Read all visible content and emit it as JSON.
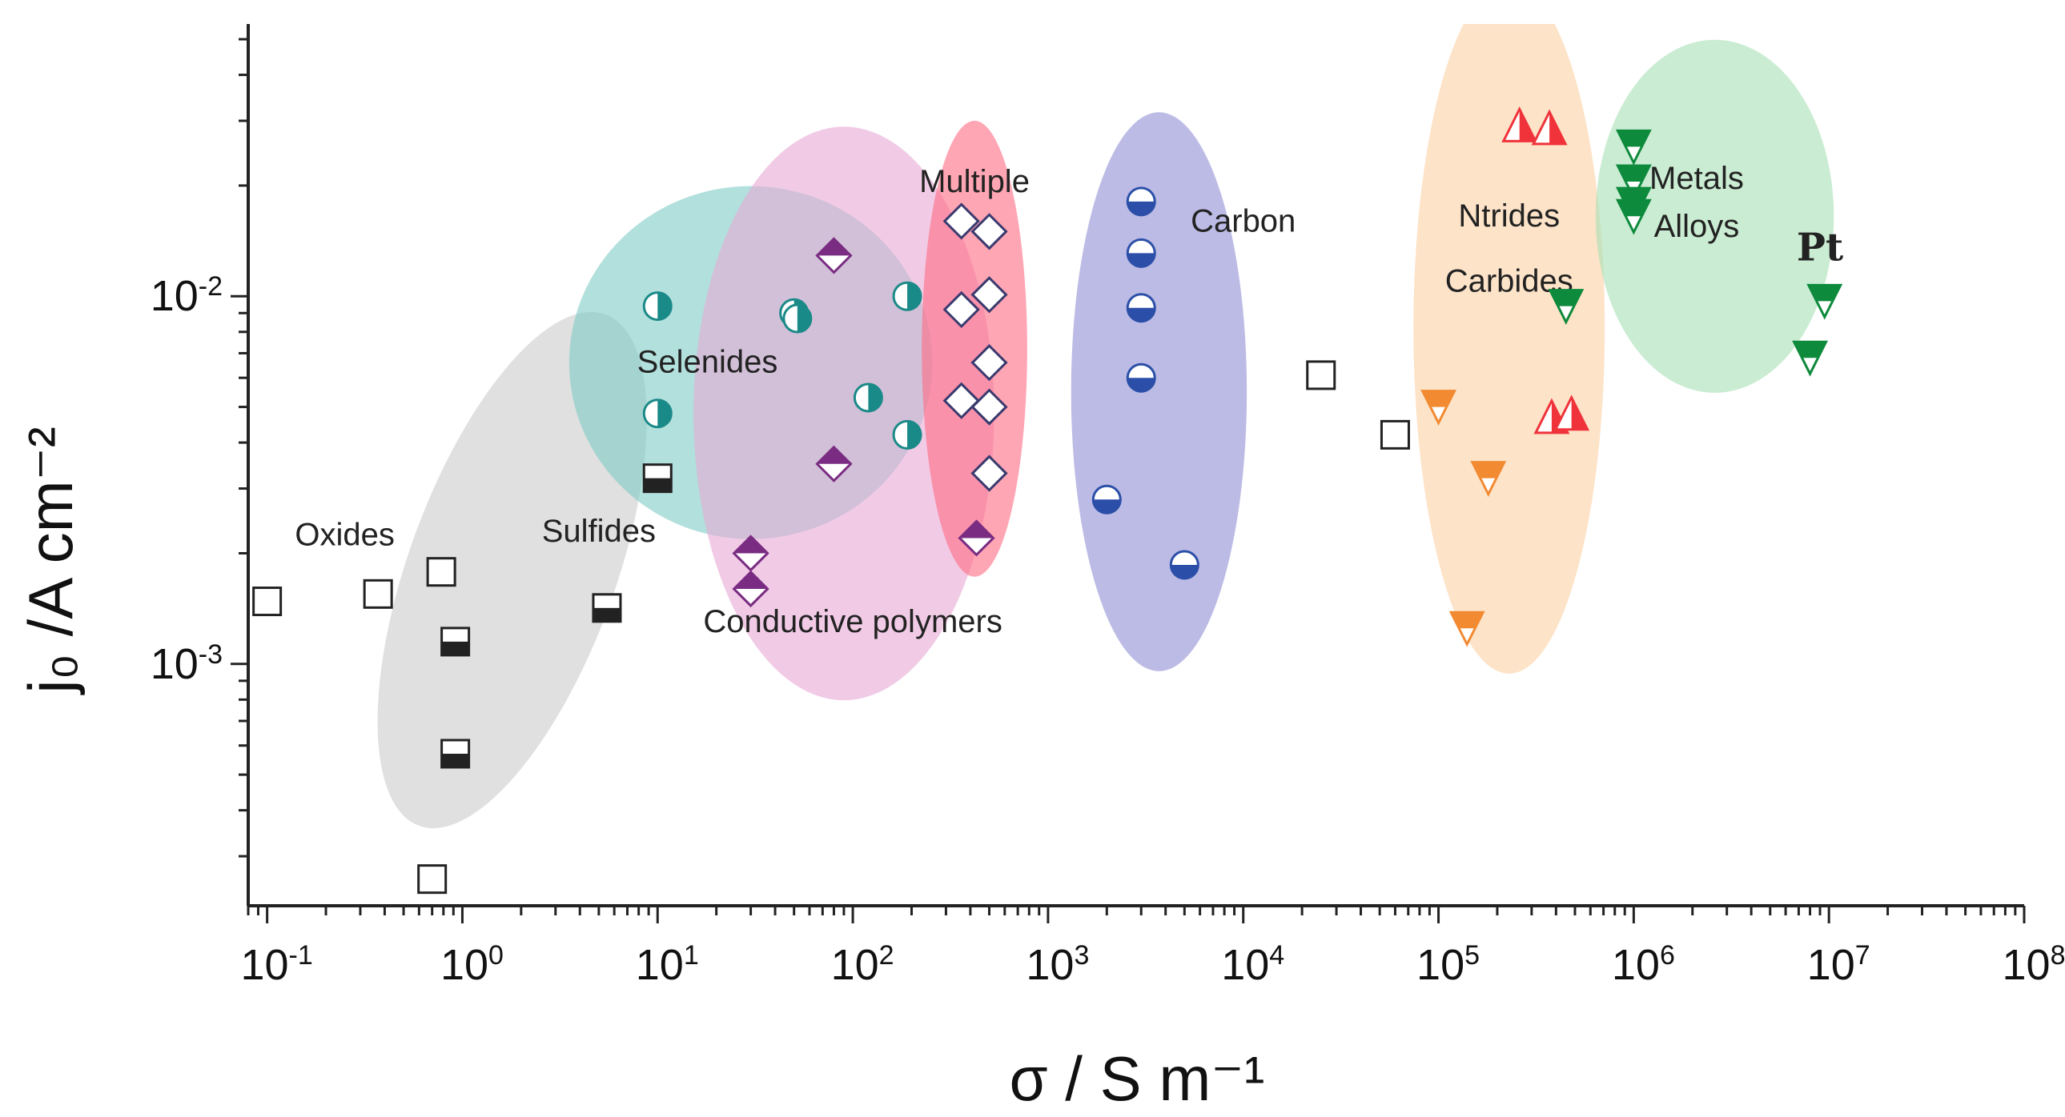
{
  "chart_data": {
    "type": "scatter",
    "title": "",
    "xlabel": "σ / S m⁻¹",
    "ylabel": "j₀ /A cm⁻²",
    "xscale": "log",
    "yscale": "log",
    "xlim": [
      0.08,
      100000000
    ],
    "ylim": [
      0.00022,
      0.055
    ],
    "x_ticks": [
      {
        "value": 0.1,
        "base": "10",
        "exp": "-1"
      },
      {
        "value": 1,
        "base": "10",
        "exp": "0"
      },
      {
        "value": 10,
        "base": "10",
        "exp": "1"
      },
      {
        "value": 100,
        "base": "10",
        "exp": "2"
      },
      {
        "value": 1000,
        "base": "10",
        "exp": "3"
      },
      {
        "value": 10000,
        "base": "10",
        "exp": "4"
      },
      {
        "value": 100000,
        "base": "10",
        "exp": "5"
      },
      {
        "value": 1000000,
        "base": "10",
        "exp": "6"
      },
      {
        "value": 10000000,
        "base": "10",
        "exp": "7"
      },
      {
        "value": 100000000,
        "base": "10",
        "exp": "8"
      }
    ],
    "y_ticks": [
      {
        "value": 0.001,
        "base": "10",
        "exp": "-3"
      },
      {
        "value": 0.01,
        "base": "10",
        "exp": "-2"
      }
    ],
    "groups": [
      {
        "name": "Oxides",
        "label": "Oxides",
        "color": "#ffffff",
        "region": null
      },
      {
        "name": "Sulfides",
        "label": "Sulfides",
        "color": "#c9cbc9",
        "region": {
          "cx": 1.8,
          "cy": 0.0018,
          "rx_dec": 0.53,
          "ry_dec": 0.74,
          "rot": 20
        }
      },
      {
        "name": "Selenides",
        "label": "Selenides",
        "color": "#7fcbc7",
        "region": {
          "cx": 30,
          "cy": 0.0066,
          "rx_dec": 0.93,
          "ry_dec": 0.48,
          "rot": 0
        }
      },
      {
        "name": "Conductive polymers",
        "label": "Conductive polymers",
        "color": "#e7a9d6",
        "region": {
          "cx": 90,
          "cy": 0.0048,
          "rx_dec": 0.77,
          "ry_dec": 0.78,
          "rot": 0
        }
      },
      {
        "name": "Multiple",
        "label": "Multiple",
        "color": "#ff6b84",
        "region": {
          "cx": 420,
          "cy": 0.0072,
          "rx_dec": 0.27,
          "ry_dec": 0.62,
          "rot": 0
        }
      },
      {
        "name": "Carbon",
        "label": "Carbon",
        "color": "#8f8ed3",
        "region": {
          "cx": 3700,
          "cy": 0.0055,
          "rx_dec": 0.45,
          "ry_dec": 0.76,
          "rot": 0
        }
      },
      {
        "name": "Ntrides Carbides",
        "label": "Ntrides",
        "label2": "Carbides",
        "color": "#fcd1a4",
        "region": {
          "cx": 230000,
          "cy": 0.0082,
          "rx_dec": 0.49,
          "ry_dec": 0.94,
          "rot": 0
        }
      },
      {
        "name": "Metals Alloys",
        "label": "Metals",
        "label2": "Alloys",
        "color": "#a6e0b4",
        "region": {
          "cx": 2600000,
          "cy": 0.0165,
          "rx_dec": 0.61,
          "ry_dec": 0.48,
          "rot": 0
        }
      }
    ],
    "annotations": [
      {
        "text": "Pt",
        "x": 9000000,
        "y": 0.0125
      }
    ],
    "series": [
      {
        "name": "Oxides",
        "marker": "square-open",
        "color": "#222222",
        "points": [
          [
            0.1,
            0.00148
          ],
          [
            0.37,
            0.00155
          ],
          [
            0.78,
            0.00178
          ],
          [
            0.7,
            0.00026
          ],
          [
            25000,
            0.0061
          ],
          [
            60000,
            0.0042
          ]
        ]
      },
      {
        "name": "Sulfides",
        "marker": "square-half",
        "color": "#222222",
        "points": [
          [
            0.92,
            0.00115
          ],
          [
            0.92,
            0.00057
          ],
          [
            5.5,
            0.00142
          ],
          [
            10,
            0.0032
          ]
        ]
      },
      {
        "name": "Selenides",
        "marker": "circle-half-v",
        "color": "#1a8a88",
        "points": [
          [
            10,
            0.0094
          ],
          [
            10,
            0.0048
          ],
          [
            50,
            0.009
          ],
          [
            52,
            0.0087
          ],
          [
            120,
            0.0053
          ],
          [
            190,
            0.01
          ],
          [
            190,
            0.0042
          ]
        ]
      },
      {
        "name": "Conductive polymers",
        "marker": "diamond-half",
        "color": "#7a2c82",
        "points": [
          [
            80,
            0.0129
          ],
          [
            80,
            0.0035
          ],
          [
            30,
            0.002
          ],
          [
            30,
            0.0016
          ],
          [
            430,
            0.0022
          ]
        ]
      },
      {
        "name": "Multiple",
        "marker": "diamond-open",
        "color": "#3a3a6e",
        "points": [
          [
            360,
            0.016
          ],
          [
            500,
            0.015
          ],
          [
            360,
            0.0092
          ],
          [
            500,
            0.0101
          ],
          [
            500,
            0.0066
          ],
          [
            360,
            0.0052
          ],
          [
            500,
            0.005
          ],
          [
            500,
            0.0033
          ]
        ]
      },
      {
        "name": "Carbon",
        "marker": "circle-half-h",
        "color": "#2b4fa8",
        "points": [
          [
            3000,
            0.0181
          ],
          [
            3000,
            0.0131
          ],
          [
            3000,
            0.0093
          ],
          [
            3000,
            0.006
          ],
          [
            2000,
            0.0028
          ],
          [
            5000,
            0.00186
          ]
        ]
      },
      {
        "name": "Nitrides",
        "marker": "triangle-half",
        "color": "#f0333a",
        "points": [
          [
            260000,
            0.0292
          ],
          [
            370000,
            0.0287
          ],
          [
            380000,
            0.0047
          ],
          [
            480000,
            0.0048
          ]
        ]
      },
      {
        "name": "Carbides",
        "marker": "triangle-down-half",
        "color": "#f28a32",
        "points": [
          [
            100000,
            0.005
          ],
          [
            180000,
            0.0032
          ],
          [
            140000,
            0.00125
          ]
        ]
      },
      {
        "name": "Metals Alloys",
        "marker": "triangle-down-half",
        "color": "#0d8a3c",
        "points": [
          [
            1000000,
            0.0255
          ],
          [
            1000000,
            0.0205
          ],
          [
            1000000,
            0.0178
          ],
          [
            1000000,
            0.0165
          ],
          [
            450000,
            0.0094
          ],
          [
            9500000,
            0.0097
          ],
          [
            8000000,
            0.0068
          ]
        ]
      }
    ]
  }
}
